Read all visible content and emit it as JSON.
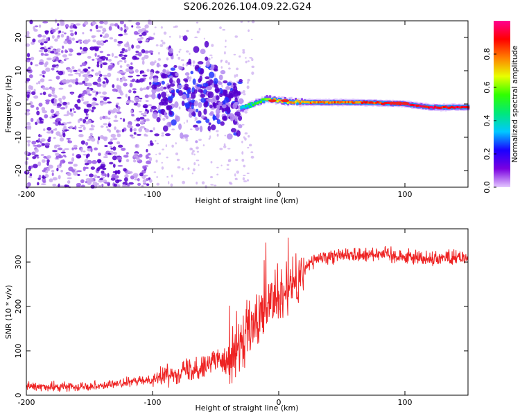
{
  "title": "S206.2026.104.09.22.G24",
  "colors": {
    "snr_line": "#ee2222",
    "frame": "#000000",
    "ridge_core": "#ee2222",
    "scatter_dark": "#5500cc",
    "scatter_light": "#c9a8f0"
  },
  "chart_data": [
    {
      "type": "heatmap",
      "name": "spectrogram",
      "xlabel": "Height of straight line (km)",
      "ylabel": "Frequency (Hz)",
      "xlim": [
        -200,
        150
      ],
      "ylim": [
        -25,
        25
      ],
      "xticks": [
        -200,
        -100,
        0,
        100
      ],
      "xtick_labels": [
        "-200",
        "-100",
        "0",
        "100"
      ],
      "yticks": [
        -20,
        -10,
        0,
        10,
        20
      ],
      "ytick_labels": [
        "-20",
        "-10",
        "0",
        "10",
        "20"
      ],
      "ridge": {
        "description_points_x": [
          -100,
          -60,
          -40,
          -30,
          -20,
          -10,
          0,
          20,
          40,
          60,
          80,
          100,
          120,
          150
        ],
        "frequency_hz": [
          2.5,
          4.0,
          0.5,
          -1.5,
          0.0,
          1.5,
          1.0,
          0.5,
          0.5,
          0.5,
          0.3,
          0.0,
          -1.0,
          -1.0
        ],
        "amplitude": [
          0.25,
          0.3,
          0.35,
          0.4,
          0.5,
          0.6,
          0.7,
          0.75,
          0.8,
          0.8,
          0.85,
          0.95,
          0.9,
          0.9
        ]
      },
      "noise_region_x": [
        -200,
        -100
      ],
      "transition_region_x": [
        -100,
        -30
      ],
      "colorbar": {
        "label": "Normalized spectral amplitude",
        "range": [
          0,
          1
        ],
        "ticks": [
          0.0,
          0.2,
          0.4,
          0.6,
          0.8
        ],
        "tick_labels": [
          "0.0",
          "0.2",
          "0.4",
          "0.6",
          "0.8"
        ],
        "colormap": [
          "#e4c8ff",
          "#7a00e0",
          "#1a00ff",
          "#00c8ff",
          "#00e87a",
          "#30ff00",
          "#e8ff00",
          "#ff8000",
          "#ff0000",
          "#ff0090"
        ]
      }
    },
    {
      "type": "line",
      "name": "snr",
      "xlabel": "Height of straight line (km)",
      "ylabel": "SNR (10 * v/v)",
      "xlim": [
        -200,
        150
      ],
      "ylim": [
        0,
        375
      ],
      "xticks": [
        -200,
        -100,
        0,
        100
      ],
      "xtick_labels": [
        "-200",
        "-100",
        "0",
        "100"
      ],
      "yticks": [
        0,
        100,
        200,
        300
      ],
      "ytick_labels": [
        "0",
        "100",
        "200",
        "300"
      ],
      "x": [
        -200,
        -180,
        -160,
        -140,
        -120,
        -100,
        -90,
        -80,
        -70,
        -60,
        -50,
        -40,
        -30,
        -25,
        -20,
        -15,
        -10,
        -5,
        0,
        5,
        10,
        15,
        20,
        25,
        30,
        40,
        50,
        60,
        70,
        80,
        90,
        100,
        110,
        120,
        130,
        140,
        150
      ],
      "y": [
        20,
        18,
        20,
        22,
        28,
        36,
        45,
        52,
        58,
        68,
        78,
        85,
        105,
        130,
        150,
        170,
        190,
        200,
        205,
        225,
        240,
        260,
        280,
        300,
        305,
        315,
        318,
        315,
        318,
        320,
        316,
        312,
        310,
        308,
        310,
        312,
        310
      ]
    }
  ]
}
